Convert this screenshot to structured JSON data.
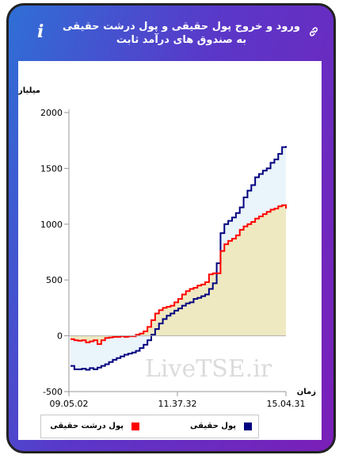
{
  "header": {
    "title": "ورود و خروج پول حقیقی و پول درشت حقیقی به صندوق های درآمد ثابت",
    "info_icon": "i",
    "link_icon": "link-icon"
  },
  "watermark": "LiveTSE.ir",
  "colors": {
    "real_money": "#00007f",
    "big_real_money": "#ff0000",
    "real_fill": "#eaf4fb",
    "big_fill": "#eee8be"
  },
  "chart_data": {
    "type": "line",
    "ylabel": "میلیارد تومان",
    "xlabel": "زمان",
    "ylim": [
      -500,
      2000
    ],
    "yticks": [
      -500,
      0,
      500,
      1000,
      1500,
      2000
    ],
    "xtick_labels": [
      "09.05.02",
      "11.37.32",
      "15.04.31"
    ],
    "grid": false,
    "legend_placement": "bottom",
    "series": [
      {
        "name": "پول حقیقی",
        "values": [
          -270,
          -300,
          -300,
          -295,
          -305,
          -290,
          -300,
          -285,
          -270,
          -255,
          -235,
          -215,
          -200,
          -185,
          -170,
          -160,
          -150,
          -135,
          -110,
          -80,
          -40,
          10,
          60,
          110,
          150,
          180,
          200,
          225,
          245,
          270,
          290,
          300,
          330,
          340,
          355,
          370,
          420,
          470,
          650,
          920,
          1000,
          1030,
          1060,
          1100,
          1150,
          1240,
          1300,
          1350,
          1420,
          1450,
          1480,
          1500,
          1550,
          1580,
          1630,
          1690,
          1700
        ]
      },
      {
        "name": "پول درشت حقیقی",
        "values": [
          -30,
          -40,
          -45,
          -40,
          -60,
          -50,
          -40,
          -75,
          -40,
          -20,
          -15,
          -10,
          -10,
          -5,
          -10,
          -5,
          -5,
          10,
          20,
          40,
          80,
          140,
          200,
          230,
          250,
          260,
          270,
          300,
          330,
          370,
          400,
          420,
          430,
          450,
          460,
          480,
          550,
          560,
          560,
          760,
          820,
          850,
          870,
          900,
          950,
          980,
          1000,
          1020,
          1050,
          1070,
          1090,
          1110,
          1130,
          1140,
          1160,
          1170,
          1140
        ]
      }
    ]
  }
}
